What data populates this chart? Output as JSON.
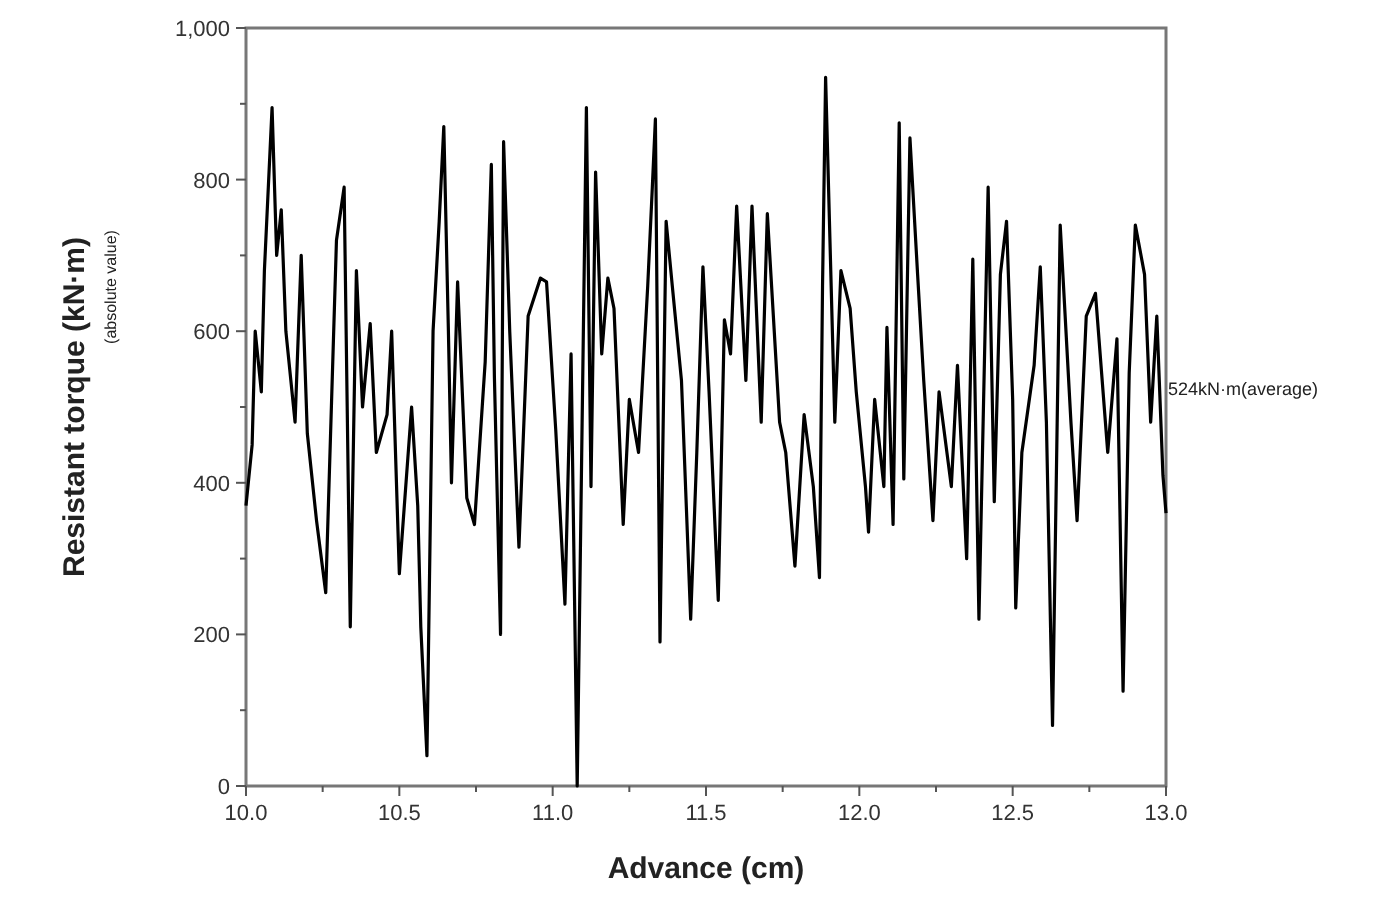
{
  "chart_data": {
    "type": "line",
    "xlabel": "Advance (cm)",
    "ylabel": "Resistant torque (kN·m)\n(absolute value)",
    "xlim": [
      10,
      13
    ],
    "ylim": [
      0,
      1000
    ],
    "xticks": [
      {
        "value": 10,
        "label": "10.0"
      },
      {
        "value": 10.25,
        "label": null
      },
      {
        "value": 10.5,
        "label": "10.5"
      },
      {
        "value": 10.75,
        "label": null
      },
      {
        "value": 11,
        "label": "11.0"
      },
      {
        "value": 11.25,
        "label": null
      },
      {
        "value": 11.5,
        "label": "11.5"
      },
      {
        "value": 11.75,
        "label": null
      },
      {
        "value": 12,
        "label": "12.0"
      },
      {
        "value": 12.25,
        "label": null
      },
      {
        "value": 12.5,
        "label": "12.5"
      },
      {
        "value": 12.75,
        "label": null
      },
      {
        "value": 13,
        "label": "13.0"
      }
    ],
    "yticks": [
      0,
      {
        "value": 100,
        "label": null
      },
      200,
      {
        "value": 300,
        "label": null
      },
      400,
      {
        "value": 500,
        "label": null
      },
      600,
      {
        "value": 700,
        "label": null
      },
      800,
      {
        "value": 900,
        "label": null
      },
      {
        "value": 1000,
        "label": "1,000"
      }
    ],
    "annotations": [
      {
        "text": "524kN·m(average)",
        "x": 13,
        "y": 524
      }
    ],
    "line_style": "solid",
    "marker": "none",
    "series": [
      {
        "color": "#000000",
        "x": [
          10.0,
          10.02,
          10.03,
          10.05,
          10.06,
          10.085,
          10.1,
          10.115,
          10.13,
          10.16,
          10.18,
          10.2,
          10.23,
          10.26,
          10.295,
          10.32,
          10.34,
          10.36,
          10.38,
          10.405,
          10.425,
          10.46,
          10.475,
          10.5,
          10.54,
          10.56,
          10.57,
          10.59,
          10.61,
          10.63,
          10.645,
          10.66,
          10.67,
          10.69,
          10.72,
          10.745,
          10.78,
          10.8,
          10.81,
          10.83,
          10.84,
          10.86,
          10.89,
          10.92,
          10.96,
          10.98,
          11.01,
          11.04,
          11.06,
          11.08,
          11.11,
          11.125,
          11.14,
          11.16,
          11.18,
          11.2,
          11.23,
          11.25,
          11.28,
          11.31,
          11.325,
          11.335,
          11.35,
          11.37,
          11.39,
          11.42,
          11.45,
          11.47,
          11.49,
          11.51,
          11.54,
          11.56,
          11.58,
          11.6,
          11.63,
          11.65,
          11.68,
          11.7,
          11.74,
          11.76,
          11.79,
          11.82,
          11.85,
          11.87,
          11.88,
          11.89,
          11.92,
          11.94,
          11.97,
          11.99,
          12.02,
          12.03,
          12.05,
          12.08,
          12.09,
          12.11,
          12.13,
          12.145,
          12.165,
          12.19,
          12.21,
          12.24,
          12.26,
          12.3,
          12.32,
          12.35,
          12.37,
          12.39,
          12.42,
          12.44,
          12.46,
          12.48,
          12.5,
          12.51,
          12.53,
          12.57,
          12.59,
          12.61,
          12.63,
          12.655,
          12.69,
          12.71,
          12.74,
          12.77,
          12.81,
          12.84,
          12.86,
          12.88,
          12.9,
          12.93,
          12.95,
          12.97,
          12.99,
          13.0
        ],
        "values": [
          370,
          450,
          600,
          520,
          680,
          895,
          700,
          760,
          600,
          480,
          700,
          465,
          350,
          255,
          720,
          790,
          210,
          680,
          500,
          610,
          440,
          490,
          600,
          280,
          500,
          370,
          210,
          40,
          600,
          745,
          870,
          600,
          400,
          665,
          380,
          345,
          560,
          820,
          540,
          200,
          850,
          600,
          315,
          620,
          670,
          665,
          470,
          240,
          570,
          0,
          895,
          395,
          810,
          570,
          670,
          630,
          345,
          510,
          440,
          660,
          790,
          880,
          190,
          745,
          660,
          535,
          220,
          440,
          685,
          520,
          245,
          615,
          570,
          765,
          535,
          765,
          480,
          755,
          480,
          440,
          290,
          490,
          395,
          275,
          660,
          935,
          480,
          680,
          630,
          520,
          395,
          335,
          510,
          395,
          605,
          345,
          875,
          405,
          855,
          675,
          535,
          350,
          520,
          395,
          555,
          300,
          695,
          220,
          790,
          375,
          675,
          745,
          510,
          235,
          440,
          555,
          685,
          480,
          80,
          740,
          480,
          350,
          620,
          650,
          440,
          590,
          125,
          545,
          740,
          675,
          480,
          620,
          410,
          360
        ]
      }
    ]
  }
}
